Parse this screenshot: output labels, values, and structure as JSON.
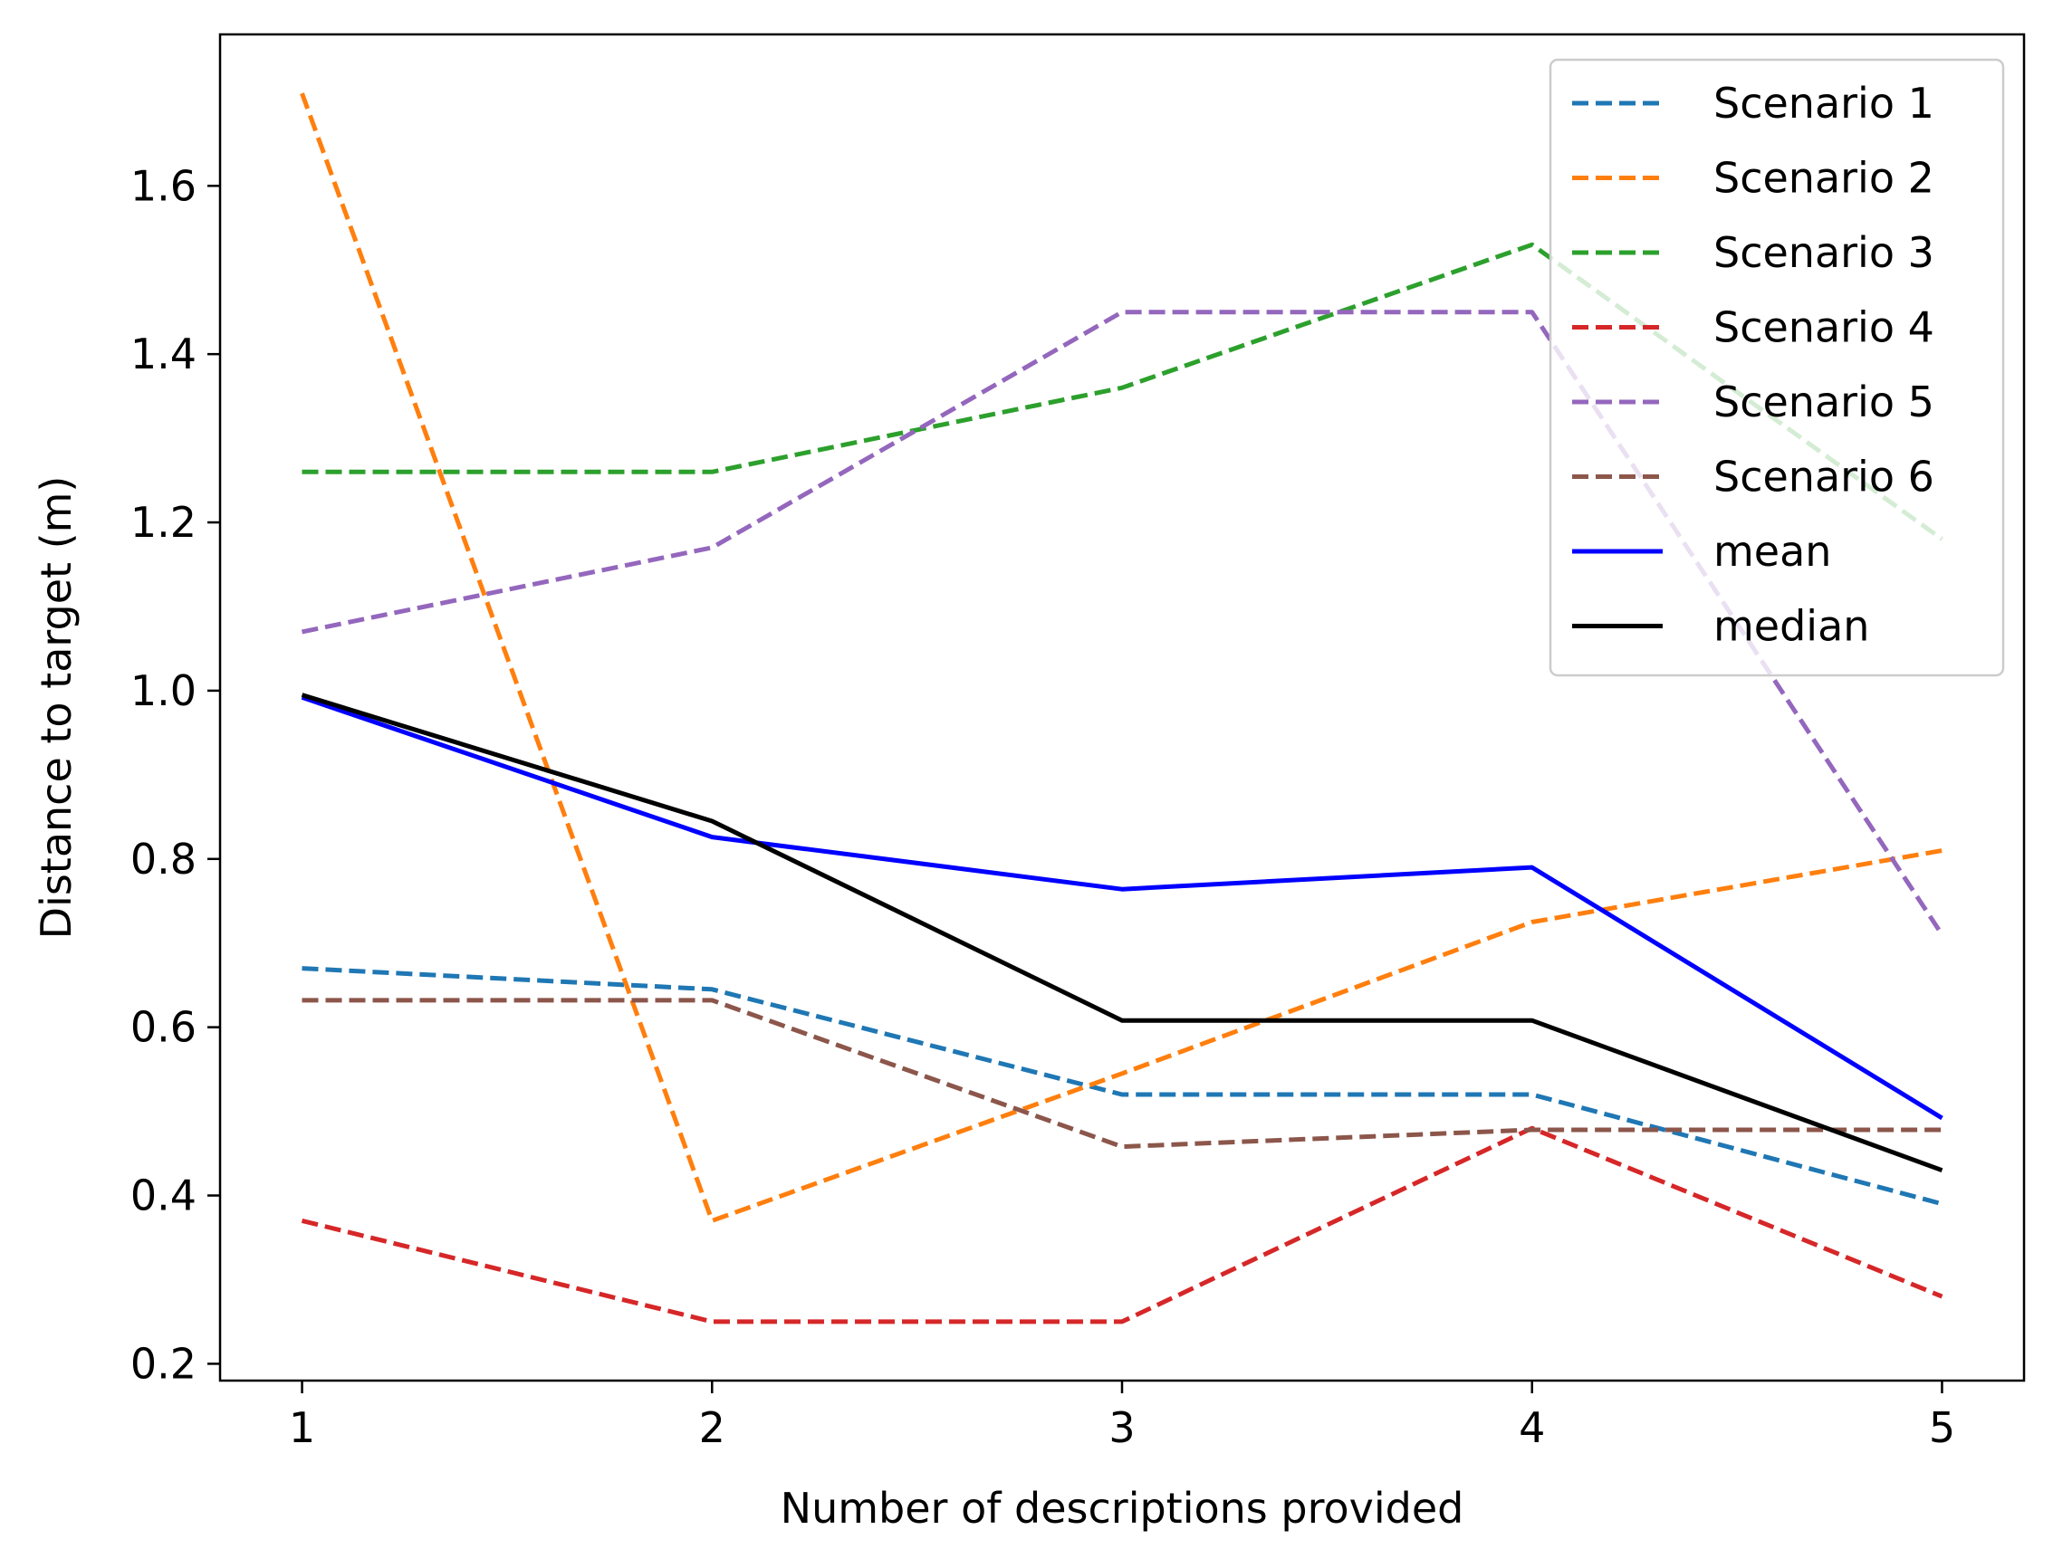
{
  "chart_data": {
    "type": "line",
    "title": "",
    "xlabel": "Number of descriptions provided",
    "ylabel": "Distance to target (m)",
    "x": [
      1,
      2,
      3,
      4,
      5
    ],
    "xticks": [
      "1",
      "2",
      "3",
      "4",
      "5"
    ],
    "yticks": [
      "0.2",
      "0.4",
      "0.6",
      "0.8",
      "1.0",
      "1.2",
      "1.4",
      "1.6"
    ],
    "xlim": [
      0.8,
      5.2
    ],
    "ylim": [
      0.18,
      1.78
    ],
    "grid": false,
    "legend_position": "top-right",
    "series": [
      {
        "name": "Scenario 1",
        "color": "#1f77b4",
        "style": "dashed",
        "values": [
          0.67,
          0.645,
          0.52,
          0.52,
          0.39
        ]
      },
      {
        "name": "Scenario 2",
        "color": "#ff7f0e",
        "style": "dashed",
        "values": [
          1.71,
          0.37,
          0.545,
          0.725,
          0.81
        ]
      },
      {
        "name": "Scenario 3",
        "color": "#2ca02c",
        "style": "dashed",
        "values": [
          1.26,
          1.26,
          1.36,
          1.53,
          1.18
        ]
      },
      {
        "name": "Scenario 4",
        "color": "#d62728",
        "style": "dashed",
        "values": [
          0.37,
          0.25,
          0.25,
          0.48,
          0.28
        ]
      },
      {
        "name": "Scenario 5",
        "color": "#9467bd",
        "style": "dashed",
        "values": [
          1.07,
          1.17,
          1.45,
          1.45,
          0.71
        ]
      },
      {
        "name": "Scenario 6",
        "color": "#8c564b",
        "style": "dashed",
        "values": [
          0.632,
          0.632,
          0.458,
          0.478,
          0.478
        ]
      },
      {
        "name": "mean",
        "color": "#0000ff",
        "style": "solid",
        "values": [
          0.992,
          0.826,
          0.764,
          0.79,
          0.492
        ]
      },
      {
        "name": "median",
        "color": "#000000",
        "style": "solid",
        "values": [
          0.995,
          0.845,
          0.608,
          0.608,
          0.43
        ]
      }
    ]
  }
}
